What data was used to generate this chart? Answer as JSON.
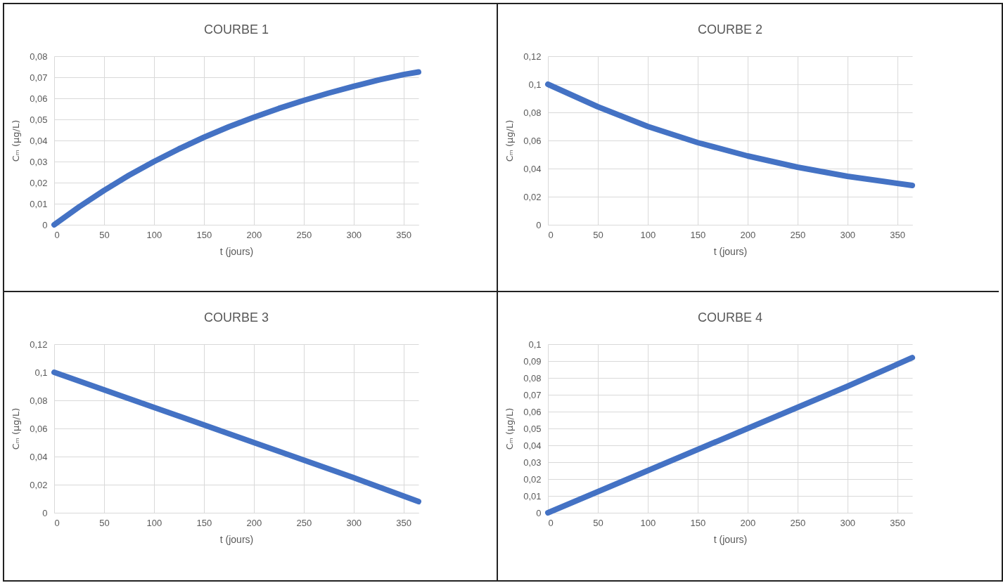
{
  "chart_data": [
    {
      "type": "line",
      "title": "COURBE 1",
      "xlabel": "t (jours)",
      "ylabel": "Cₘ (µg/L)",
      "xlim": [
        0,
        365
      ],
      "xticks": [
        0,
        50,
        100,
        150,
        200,
        250,
        300,
        350
      ],
      "ylim": [
        0,
        0.08
      ],
      "yticks": [
        {
          "value": 0,
          "label": "0"
        },
        {
          "value": 0.01,
          "label": "0,01"
        },
        {
          "value": 0.02,
          "label": "0,02"
        },
        {
          "value": 0.03,
          "label": "0,03"
        },
        {
          "value": 0.04,
          "label": "0,04"
        },
        {
          "value": 0.05,
          "label": "0,05"
        },
        {
          "value": 0.06,
          "label": "0,06"
        },
        {
          "value": 0.07,
          "label": "0,07"
        },
        {
          "value": 0.08,
          "label": "0,08"
        }
      ],
      "grid": true,
      "x": [
        0,
        25,
        50,
        75,
        100,
        125,
        150,
        175,
        200,
        225,
        250,
        275,
        300,
        325,
        350,
        365
      ],
      "series": [
        {
          "color": "#4472c4",
          "values": [
            0,
            0.0085,
            0.0163,
            0.0235,
            0.03,
            0.036,
            0.0415,
            0.0465,
            0.051,
            0.0552,
            0.059,
            0.0625,
            0.0657,
            0.0687,
            0.0713,
            0.0725
          ]
        }
      ]
    },
    {
      "type": "line",
      "title": "COURBE 2",
      "xlabel": "t (jours)",
      "ylabel": "Cₘ (µg/L)",
      "xlim": [
        0,
        365
      ],
      "xticks": [
        0,
        50,
        100,
        150,
        200,
        250,
        300,
        350
      ],
      "ylim": [
        0,
        0.12
      ],
      "yticks": [
        {
          "value": 0,
          "label": "0"
        },
        {
          "value": 0.02,
          "label": "0,02"
        },
        {
          "value": 0.04,
          "label": "0,04"
        },
        {
          "value": 0.06,
          "label": "0,06"
        },
        {
          "value": 0.08,
          "label": "0,08"
        },
        {
          "value": 0.1,
          "label": "0,1"
        },
        {
          "value": 0.12,
          "label": "0,12"
        }
      ],
      "grid": true,
      "x": [
        0,
        50,
        100,
        150,
        200,
        250,
        300,
        365
      ],
      "series": [
        {
          "color": "#4472c4",
          "values": [
            0.1,
            0.084,
            0.07,
            0.0585,
            0.049,
            0.041,
            0.0345,
            0.028
          ]
        }
      ]
    },
    {
      "type": "line",
      "title": "COURBE 3",
      "xlabel": "t (jours)",
      "ylabel": "Cₘ (µg/L)",
      "xlim": [
        0,
        365
      ],
      "xticks": [
        0,
        50,
        100,
        150,
        200,
        250,
        300,
        350
      ],
      "ylim": [
        0,
        0.12
      ],
      "yticks": [
        {
          "value": 0,
          "label": "0"
        },
        {
          "value": 0.02,
          "label": "0,02"
        },
        {
          "value": 0.04,
          "label": "0,04"
        },
        {
          "value": 0.06,
          "label": "0,06"
        },
        {
          "value": 0.08,
          "label": "0,08"
        },
        {
          "value": 0.1,
          "label": "0,1"
        },
        {
          "value": 0.12,
          "label": "0,12"
        }
      ],
      "grid": true,
      "x": [
        0,
        100,
        200,
        300,
        365
      ],
      "series": [
        {
          "color": "#4472c4",
          "values": [
            0.1,
            0.075,
            0.05,
            0.025,
            0.008
          ]
        }
      ]
    },
    {
      "type": "line",
      "title": "COURBE 4",
      "xlabel": "t (jours)",
      "ylabel": "Cₘ (µg/L)",
      "xlim": [
        0,
        365
      ],
      "xticks": [
        0,
        50,
        100,
        150,
        200,
        250,
        300,
        350
      ],
      "ylim": [
        0,
        0.1
      ],
      "yticks": [
        {
          "value": 0,
          "label": "0"
        },
        {
          "value": 0.01,
          "label": "0,01"
        },
        {
          "value": 0.02,
          "label": "0,02"
        },
        {
          "value": 0.03,
          "label": "0,03"
        },
        {
          "value": 0.04,
          "label": "0,04"
        },
        {
          "value": 0.05,
          "label": "0,05"
        },
        {
          "value": 0.06,
          "label": "0,06"
        },
        {
          "value": 0.07,
          "label": "0,07"
        },
        {
          "value": 0.08,
          "label": "0,08"
        },
        {
          "value": 0.09,
          "label": "0,09"
        },
        {
          "value": 0.1,
          "label": "0,1"
        }
      ],
      "grid": true,
      "x": [
        0,
        100,
        200,
        300,
        365
      ],
      "series": [
        {
          "color": "#4472c4",
          "values": [
            0,
            0.025,
            0.05,
            0.075,
            0.092
          ]
        }
      ]
    }
  ]
}
